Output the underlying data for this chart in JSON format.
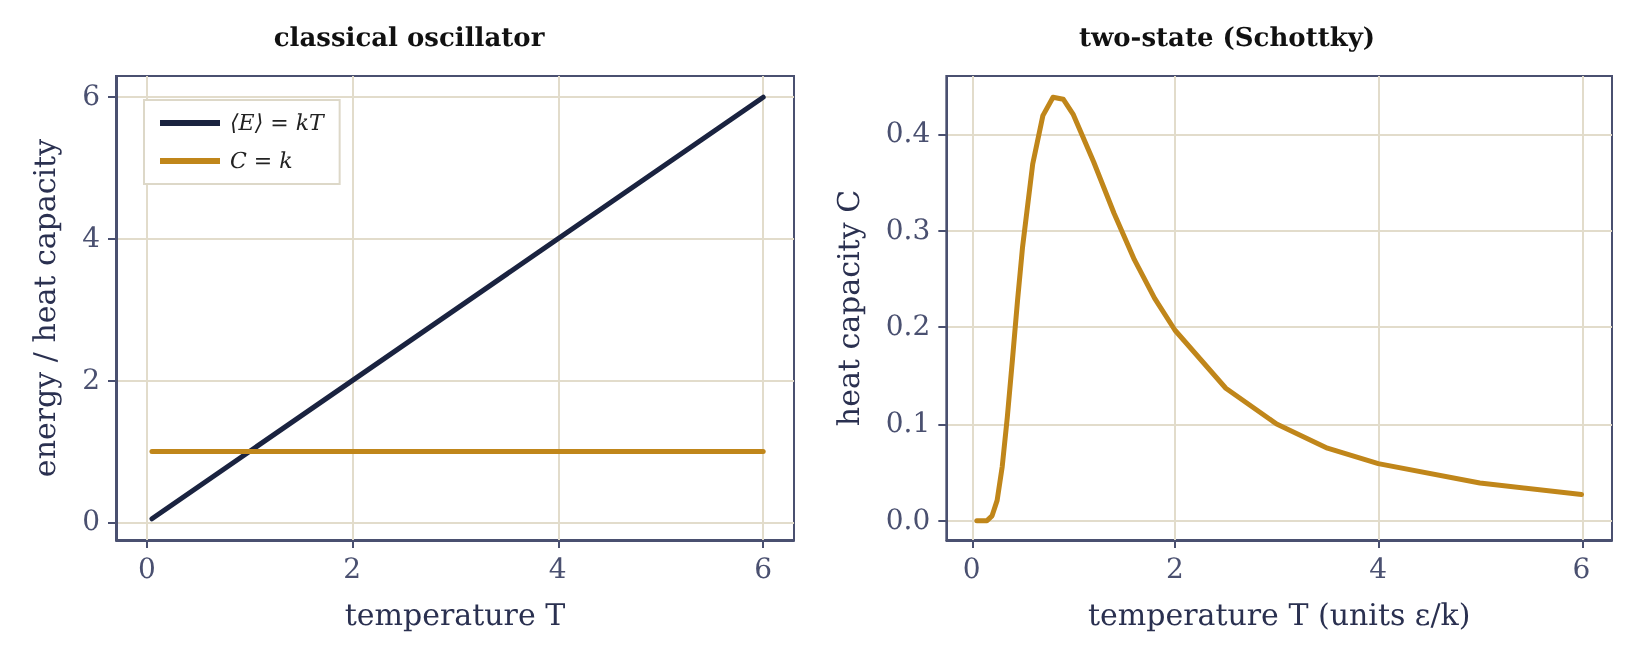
{
  "chart_data": [
    {
      "type": "line",
      "title": "classical oscillator",
      "xlabel": "temperature T",
      "ylabel": "energy / heat capacity",
      "xlim": [
        -0.3,
        6.3
      ],
      "ylim": [
        -0.25,
        6.3
      ],
      "xticks": [
        0,
        2,
        4,
        6
      ],
      "yticks": [
        0,
        2,
        4,
        6
      ],
      "grid": true,
      "legend": "top left",
      "marker": "none",
      "line_style": "solid",
      "series": [
        {
          "name": "⟨E⟩ = kT",
          "color": "#1a2340",
          "x": [
            0.05,
            6
          ],
          "values": [
            0.05,
            6
          ]
        },
        {
          "name": "C = k",
          "color": "#c0861a",
          "x": [
            0.05,
            6
          ],
          "values": [
            1,
            1
          ]
        }
      ]
    },
    {
      "type": "line",
      "title": "two-state (Schottky)",
      "xlabel": "temperature T (units ε/k)",
      "ylabel": "heat capacity C",
      "xlim": [
        -0.25,
        6.3
      ],
      "ylim": [
        -0.02,
        0.46
      ],
      "xticks": [
        0,
        2,
        4,
        6
      ],
      "yticks": [
        {
          "value": 0,
          "label": "0.0"
        },
        {
          "value": 0.1,
          "label": "0.1"
        },
        {
          "value": 0.2,
          "label": "0.2"
        },
        {
          "value": 0.3,
          "label": "0.3"
        },
        {
          "value": 0.4,
          "label": "0.4"
        }
      ],
      "grid": true,
      "marker": "none",
      "line_style": "solid",
      "series": [
        {
          "color": "#c0861a",
          "x": [
            0.05,
            0.1,
            0.15,
            0.2,
            0.25,
            0.3,
            0.35,
            0.4,
            0.45,
            0.5,
            0.6,
            0.7,
            0.8,
            0.9,
            1,
            1.2,
            1.4,
            1.6,
            1.8,
            2,
            2.5,
            3,
            3.5,
            4,
            5,
            6
          ],
          "values": [
            0,
            0,
            0,
            0.005,
            0.021,
            0.056,
            0.107,
            0.166,
            0.227,
            0.283,
            0.369,
            0.419,
            0.438,
            0.436,
            0.42,
            0.371,
            0.318,
            0.27,
            0.23,
            0.197,
            0.137,
            0.1,
            0.075,
            0.059,
            0.039,
            0.027
          ]
        }
      ]
    }
  ]
}
